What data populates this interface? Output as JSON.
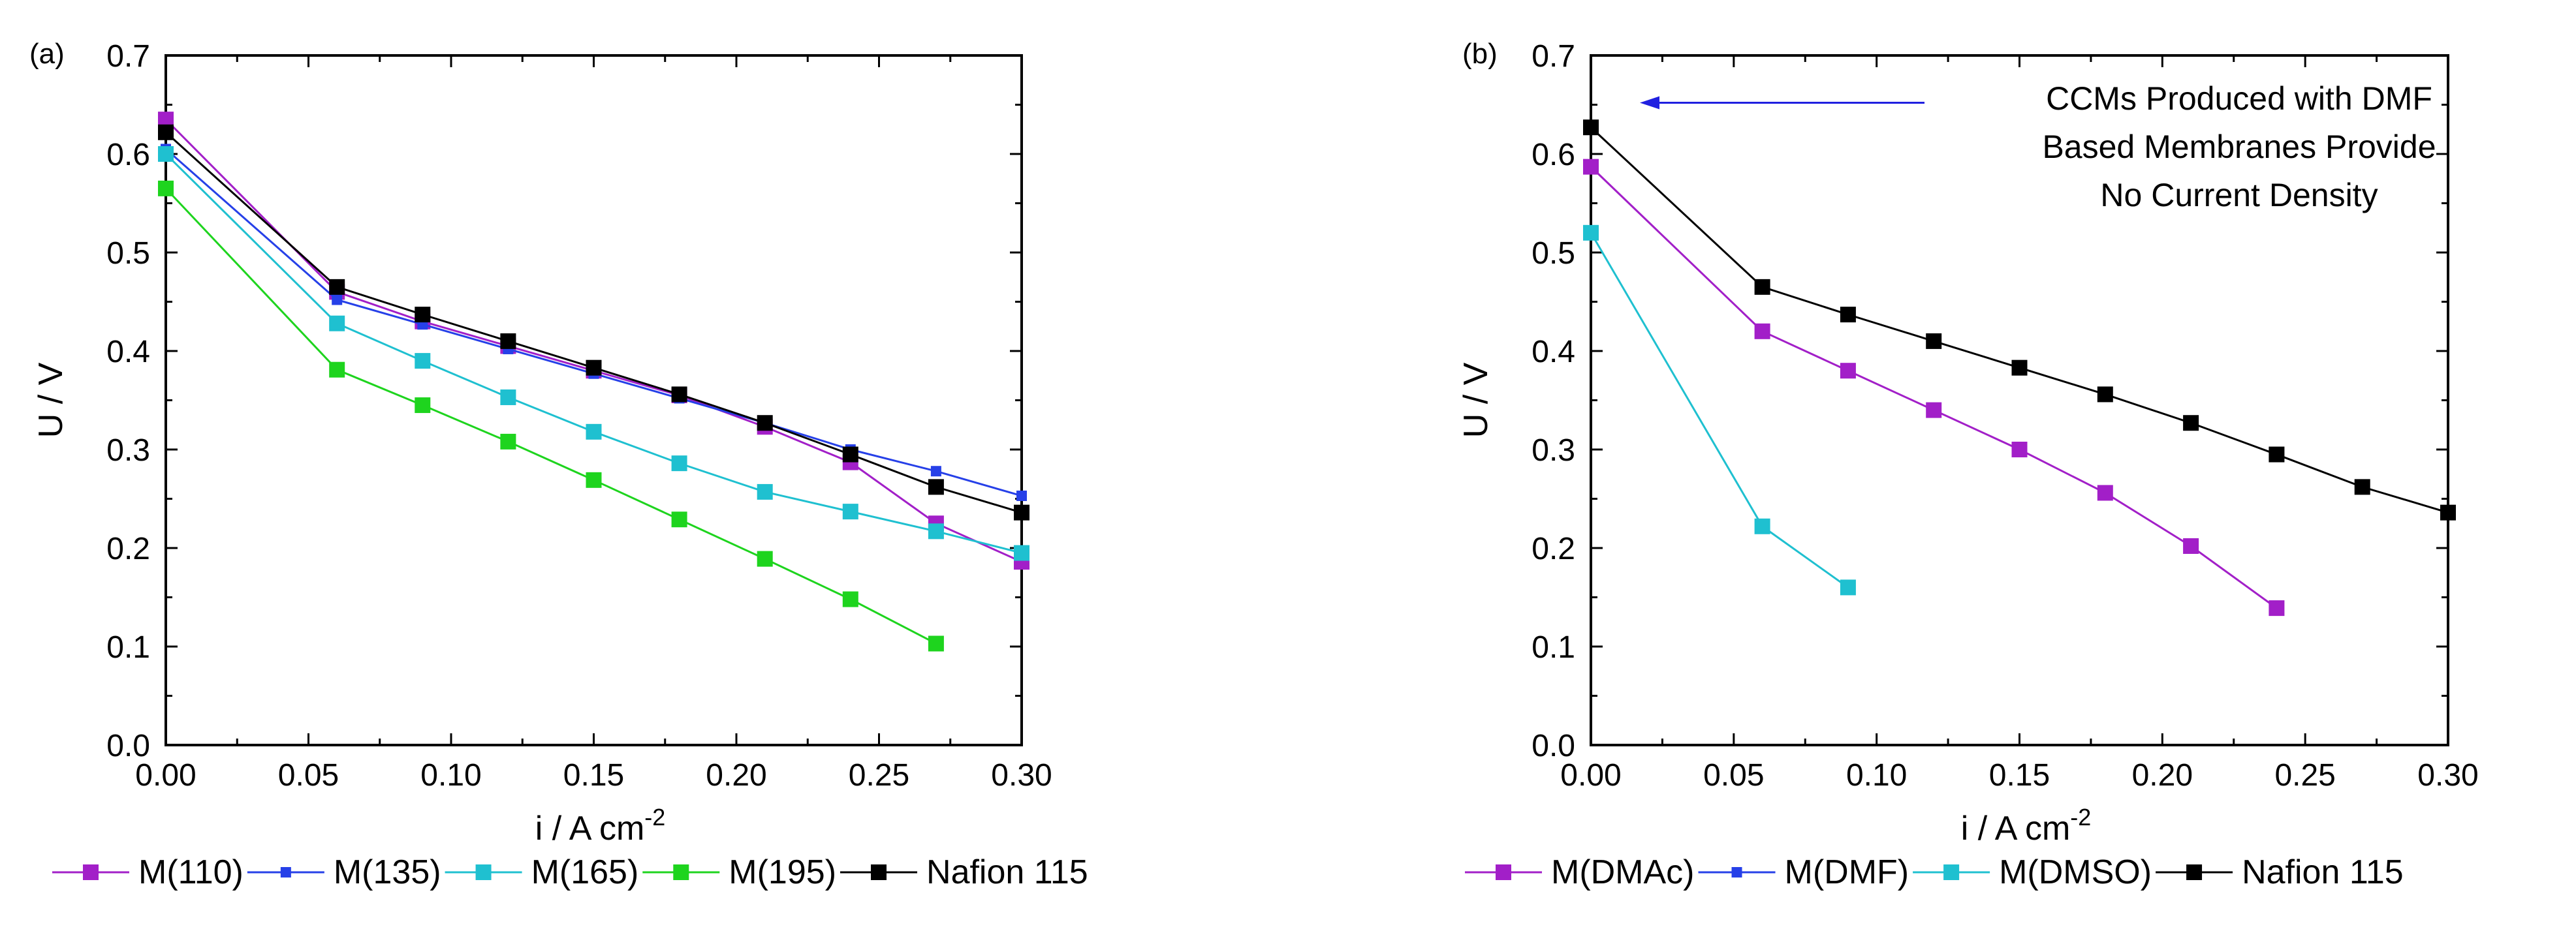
{
  "chart_data": [
    {
      "type": "line",
      "panel_label": "(a)",
      "xlabel": "i  /  A cm",
      "xlabel_sup": "-2",
      "ylabel": "U  /  V",
      "xlim": [
        0,
        0.3
      ],
      "ylim": [
        0,
        0.7
      ],
      "xticks": [
        "0.00",
        "0.05",
        "0.10",
        "0.15",
        "0.20",
        "0.25",
        "0.30"
      ],
      "yticks": [
        "0.0",
        "0.1",
        "0.2",
        "0.3",
        "0.4",
        "0.5",
        "0.6",
        "0.7"
      ],
      "legend_position": "bottom",
      "series": [
        {
          "name": "M(110)",
          "color": "#a21fc8",
          "marker": "square",
          "x": [
            0,
            0.06,
            0.09,
            0.12,
            0.15,
            0.18,
            0.21,
            0.24,
            0.27,
            0.3
          ],
          "y": [
            0.635,
            0.46,
            0.43,
            0.405,
            0.38,
            0.355,
            0.323,
            0.287,
            0.225,
            0.186
          ]
        },
        {
          "name": "M(135)",
          "color": "#2640e8",
          "marker": "square-small",
          "x": [
            0,
            0.06,
            0.09,
            0.12,
            0.15,
            0.18,
            0.21,
            0.24,
            0.27,
            0.3
          ],
          "y": [
            0.605,
            0.452,
            0.427,
            0.402,
            0.377,
            0.352,
            0.327,
            0.3,
            0.278,
            0.253
          ]
        },
        {
          "name": "M(165)",
          "color": "#1fc0d0",
          "marker": "square",
          "x": [
            0,
            0.06,
            0.09,
            0.12,
            0.15,
            0.18,
            0.21,
            0.24,
            0.27,
            0.3
          ],
          "y": [
            0.6,
            0.428,
            0.39,
            0.353,
            0.318,
            0.286,
            0.257,
            0.237,
            0.217,
            0.195
          ]
        },
        {
          "name": "M(195)",
          "color": "#1ed41e",
          "marker": "square",
          "x": [
            0,
            0.06,
            0.09,
            0.12,
            0.15,
            0.18,
            0.21,
            0.24,
            0.27
          ],
          "y": [
            0.565,
            0.381,
            0.345,
            0.308,
            0.269,
            0.229,
            0.189,
            0.148,
            0.103
          ]
        },
        {
          "name": "Nafion 115",
          "color": "#000000",
          "marker": "square",
          "x": [
            0,
            0.06,
            0.09,
            0.12,
            0.15,
            0.18,
            0.21,
            0.24,
            0.27,
            0.3
          ],
          "y": [
            0.622,
            0.465,
            0.437,
            0.41,
            0.383,
            0.356,
            0.327,
            0.295,
            0.262,
            0.236
          ]
        }
      ]
    },
    {
      "type": "line",
      "panel_label": "(b)",
      "xlabel": "i  /  A cm",
      "xlabel_sup": "-2",
      "ylabel": "U  /  V",
      "xlim": [
        0,
        0.3
      ],
      "ylim": [
        0,
        0.7
      ],
      "xticks": [
        "0.00",
        "0.05",
        "0.10",
        "0.15",
        "0.20",
        "0.25",
        "0.30"
      ],
      "yticks": [
        "0.0",
        "0.1",
        "0.2",
        "0.3",
        "0.4",
        "0.5",
        "0.6",
        "0.7"
      ],
      "legend_position": "bottom",
      "annotation": {
        "lines": [
          "CCMs Produced with DMF",
          "Based Membranes Provide",
          "No Current Density"
        ],
        "arrow_color": "#2020e0",
        "arrow_target": {
          "x": 0.0,
          "y": 0.652
        }
      },
      "series": [
        {
          "name": "M(DMAc)",
          "color": "#a21fc8",
          "marker": "square",
          "x": [
            0,
            0.06,
            0.09,
            0.12,
            0.15,
            0.18,
            0.21,
            0.24
          ],
          "y": [
            0.587,
            0.42,
            0.38,
            0.34,
            0.3,
            0.256,
            0.202,
            0.139
          ]
        },
        {
          "name": "M(DMF)",
          "color": "#2640e8",
          "marker": "square-small",
          "x": [],
          "y": []
        },
        {
          "name": "M(DMSO)",
          "color": "#1fc0d0",
          "marker": "square",
          "x": [
            0,
            0.06,
            0.09
          ],
          "y": [
            0.52,
            0.222,
            0.16
          ]
        },
        {
          "name": "Nafion 115",
          "color": "#000000",
          "marker": "square",
          "x": [
            0,
            0.06,
            0.09,
            0.12,
            0.15,
            0.18,
            0.21,
            0.24,
            0.27,
            0.3
          ],
          "y": [
            0.627,
            0.465,
            0.437,
            0.41,
            0.383,
            0.356,
            0.327,
            0.295,
            0.262,
            0.236
          ]
        }
      ]
    }
  ]
}
